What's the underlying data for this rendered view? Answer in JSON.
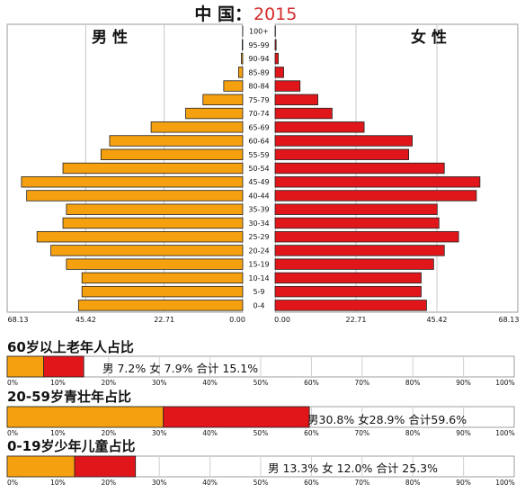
{
  "chart_data": [
    {
      "type": "bar",
      "title_prefix": "中 国：",
      "title_year": "2015",
      "left_label": "男 性",
      "right_label": "女 性",
      "categories": [
        "0-4",
        "5-9",
        "10-14",
        "15-19",
        "20-24",
        "25-29",
        "30-34",
        "35-39",
        "40-44",
        "45-49",
        "50-54",
        "55-59",
        "60-64",
        "65-69",
        "70-74",
        "75-79",
        "80-84",
        "85-89",
        "90-94",
        "95-99",
        "100+"
      ],
      "series": [
        {
          "name": "男 性",
          "values": [
            47.5,
            46.5,
            46.5,
            51.0,
            55.5,
            59.5,
            52.0,
            51.0,
            62.5,
            64.0,
            52.0,
            41.0,
            38.5,
            26.5,
            16.5,
            11.5,
            5.5,
            1.2,
            0.4,
            0.15,
            0.05
          ]
        },
        {
          "name": "女 性",
          "values": [
            42.5,
            41.0,
            41.0,
            44.5,
            47.5,
            51.5,
            46.0,
            45.5,
            56.5,
            57.5,
            47.5,
            37.5,
            38.5,
            25.0,
            16.0,
            12.0,
            7.0,
            2.4,
            0.9,
            0.3,
            0.1
          ]
        }
      ],
      "left_ticks": [
        "68.13",
        "45.42",
        "22.71",
        "0.00"
      ],
      "right_ticks": [
        "0.00",
        "22.71",
        "45.42",
        "68.13"
      ],
      "xlim": [
        0,
        68.13
      ],
      "grid": true
    },
    {
      "type": "bar",
      "title": "60岁以上老年人占比",
      "male": 7.2,
      "female": 7.9,
      "total": 15.1,
      "label": "男 7.2%  女 7.9%  合计 15.1%",
      "xlim": [
        0,
        100
      ],
      "ticks": [
        "0%",
        "10%",
        "20%",
        "30%",
        "40%",
        "50%",
        "60%",
        "70%",
        "80%",
        "90%",
        "100%"
      ]
    },
    {
      "type": "bar",
      "title": "20-59岁青壮年占比",
      "male": 30.8,
      "female": 28.9,
      "total": 59.6,
      "label": "男30.8%  女28.9%  合计59.6%",
      "xlim": [
        0,
        100
      ],
      "ticks": [
        "0%",
        "10%",
        "20%",
        "30%",
        "40%",
        "50%",
        "60%",
        "70%",
        "80%",
        "90%",
        "100%"
      ]
    },
    {
      "type": "bar",
      "title": "0-19岁少年儿童占比",
      "male": 13.3,
      "female": 12.0,
      "total": 25.3,
      "label": "男 13.3%  女 12.0%  合计  25.3%",
      "xlim": [
        0,
        100
      ],
      "ticks": [
        "0%",
        "10%",
        "20%",
        "30%",
        "40%",
        "50%",
        "60%",
        "70%",
        "80%",
        "90%",
        "100%"
      ]
    }
  ],
  "colors": {
    "male": "#f5a00f",
    "female": "#e0161b",
    "title_red": "#d42a2a",
    "grid": "#c8c8c8"
  }
}
